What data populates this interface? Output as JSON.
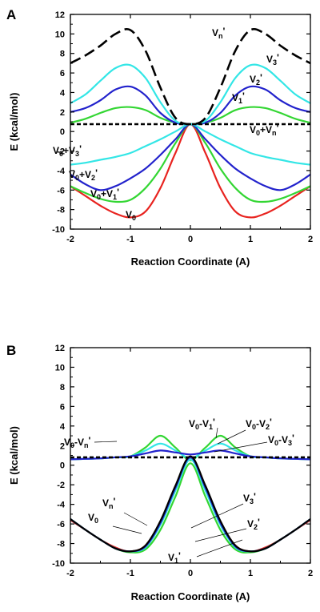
{
  "figure": {
    "panels": [
      {
        "label": "A",
        "xlabel": "Reaction Coordinate (A)",
        "ylabel": "E (kcal/mol)",
        "xlim": [
          -2,
          2
        ],
        "ylim": [
          -10,
          12
        ],
        "xticks": [
          "-2",
          "-1",
          "0",
          "1",
          "2"
        ],
        "yticks": [
          "-10",
          "-8",
          "-6",
          "-4",
          "-2",
          "0",
          "2",
          "4",
          "6",
          "8",
          "10",
          "12"
        ]
      },
      {
        "label": "B",
        "xlabel": "Reaction Coordinate (A)",
        "ylabel": "E (kcal/mol)",
        "xlim": [
          -2,
          2
        ],
        "ylim": [
          -10,
          12
        ],
        "xticks": [
          "-2",
          "-1",
          "0",
          "1",
          "2"
        ],
        "yticks": [
          "-10",
          "-8",
          "-6",
          "-4",
          "-2",
          "0",
          "2",
          "4",
          "6",
          "8",
          "10",
          "12"
        ]
      }
    ]
  },
  "chart_data": [
    {
      "type": "line",
      "panel": "A",
      "xlabel": "Reaction Coordinate (A)",
      "ylabel": "E (kcal/mol)",
      "xlim": [
        -2,
        2
      ],
      "ylim": [
        -10,
        12
      ],
      "x": [
        -2.0,
        -1.75,
        -1.5,
        -1.25,
        -1.0,
        -0.75,
        -0.5,
        -0.25,
        0.0,
        0.25,
        0.5,
        0.75,
        1.0,
        1.25,
        1.5,
        1.75,
        2.0
      ],
      "series": [
        {
          "name": "V0",
          "color": "#e8231f",
          "style": "solid",
          "values": [
            -5.6,
            -6.6,
            -7.6,
            -8.4,
            -8.8,
            -8.2,
            -5.8,
            -2.2,
            0.75,
            -2.2,
            -5.8,
            -8.2,
            -8.8,
            -8.4,
            -7.6,
            -6.6,
            -5.6
          ]
        },
        {
          "name": "V0+V1'",
          "color": "#33d633",
          "style": "solid",
          "values": [
            -5.6,
            -6.3,
            -6.9,
            -7.2,
            -7.0,
            -5.8,
            -3.8,
            -1.2,
            0.75,
            -1.2,
            -3.8,
            -5.8,
            -7.0,
            -7.2,
            -6.9,
            -6.3,
            -5.6
          ]
        },
        {
          "name": "V0+V2'",
          "color": "#2222cc",
          "style": "solid",
          "values": [
            -4.4,
            -5.4,
            -6.0,
            -5.6,
            -4.8,
            -3.8,
            -2.4,
            -0.8,
            0.75,
            -0.8,
            -2.4,
            -3.8,
            -4.8,
            -5.6,
            -6.0,
            -5.4,
            -4.4
          ]
        },
        {
          "name": "V0+V3'",
          "color": "#33e6e6",
          "style": "solid",
          "values": [
            -3.4,
            -3.2,
            -2.9,
            -2.6,
            -2.2,
            -1.5,
            -0.8,
            0.0,
            0.75,
            0.0,
            -0.8,
            -1.5,
            -2.2,
            -2.6,
            -2.9,
            -3.2,
            -3.4
          ]
        },
        {
          "name": "V1'",
          "color": "#33d633",
          "style": "solid",
          "values": [
            0.9,
            1.3,
            1.9,
            2.4,
            2.5,
            2.2,
            1.4,
            0.9,
            0.75,
            0.9,
            1.4,
            2.2,
            2.5,
            2.4,
            1.9,
            1.3,
            0.9
          ]
        },
        {
          "name": "V2'",
          "color": "#2222cc",
          "style": "solid",
          "values": [
            2.0,
            2.4,
            3.2,
            4.3,
            4.6,
            3.7,
            1.9,
            0.9,
            0.75,
            0.9,
            1.9,
            3.7,
            4.6,
            4.3,
            3.2,
            2.4,
            2.0
          ]
        },
        {
          "name": "V3'",
          "color": "#33e6e6",
          "style": "solid",
          "values": [
            2.9,
            3.8,
            5.2,
            6.5,
            6.8,
            5.5,
            3.0,
            1.1,
            0.75,
            1.1,
            3.0,
            5.5,
            6.8,
            6.5,
            5.2,
            3.8,
            2.9
          ]
        },
        {
          "name": "Vn'",
          "color": "#000000",
          "style": "dashed",
          "values": [
            7.0,
            7.8,
            8.8,
            10.0,
            10.4,
            8.3,
            4.5,
            1.4,
            0.75,
            1.4,
            4.5,
            8.3,
            10.4,
            10.0,
            8.8,
            7.8,
            7.0
          ]
        },
        {
          "name": "V0+Vn'",
          "color": "#000000",
          "style": "dashed",
          "values": [
            0.75,
            0.75,
            0.75,
            0.75,
            0.75,
            0.75,
            0.75,
            0.75,
            0.75,
            0.75,
            0.75,
            0.75,
            0.75,
            0.75,
            0.75,
            0.75,
            0.75
          ]
        }
      ],
      "annotations": [
        {
          "text": "Vn'",
          "base": "V",
          "sub": "n",
          "tail": "'"
        },
        {
          "text": "V3'",
          "base": "V",
          "sub": "3",
          "tail": "'"
        },
        {
          "text": "V2'",
          "base": "V",
          "sub": "2",
          "tail": "'"
        },
        {
          "text": "V1'",
          "base": "V",
          "sub": "1",
          "tail": "'"
        },
        {
          "text": "V0+Vn'",
          "base": "V",
          "sub": "0",
          "mid": "+V",
          "sub2": "n",
          "tail": "'"
        },
        {
          "text": "V0+V3'",
          "base": "V",
          "sub": "0",
          "mid": "+V",
          "sub2": "3",
          "tail": "'"
        },
        {
          "text": "V0+V2'",
          "base": "V",
          "sub": "0",
          "mid": "+V",
          "sub2": "2",
          "tail": "'"
        },
        {
          "text": "V0+V1'",
          "base": "V",
          "sub": "0",
          "mid": "+V",
          "sub2": "1",
          "tail": "'"
        },
        {
          "text": "V0",
          "base": "V",
          "sub": "0",
          "tail": ""
        }
      ]
    },
    {
      "type": "line",
      "panel": "B",
      "xlabel": "Reaction Coordinate (A)",
      "ylabel": "E (kcal/mol)",
      "xlim": [
        -2,
        2
      ],
      "ylim": [
        -10,
        12
      ],
      "x": [
        -2.0,
        -1.75,
        -1.5,
        -1.25,
        -1.0,
        -0.75,
        -0.5,
        -0.25,
        0.0,
        0.25,
        0.5,
        0.75,
        1.0,
        1.25,
        1.5,
        1.75,
        2.0
      ],
      "series": [
        {
          "name": "V0-V1'",
          "color": "#33d633",
          "style": "solid",
          "values": [
            0.6,
            0.65,
            0.7,
            0.8,
            0.9,
            1.8,
            3.0,
            1.8,
            0.5,
            1.8,
            3.0,
            1.8,
            0.9,
            0.8,
            0.7,
            0.65,
            0.6
          ]
        },
        {
          "name": "V0-V2'",
          "color": "#33e6e6",
          "style": "solid",
          "values": [
            0.6,
            0.65,
            0.7,
            0.8,
            0.9,
            1.5,
            2.2,
            1.5,
            0.7,
            1.5,
            2.2,
            1.5,
            0.9,
            0.8,
            0.7,
            0.65,
            0.6
          ]
        },
        {
          "name": "V0-V3'",
          "color": "#2222cc",
          "style": "solid",
          "values": [
            0.6,
            0.65,
            0.7,
            0.8,
            0.9,
            1.2,
            1.5,
            1.3,
            1.1,
            1.3,
            1.5,
            1.2,
            0.9,
            0.8,
            0.7,
            0.65,
            0.6
          ]
        },
        {
          "name": "V0-Vn'",
          "color": "#000000",
          "style": "dashed",
          "values": [
            0.8,
            0.8,
            0.8,
            0.8,
            0.8,
            0.8,
            0.8,
            0.8,
            0.8,
            0.8,
            0.8,
            0.8,
            0.8,
            0.8,
            0.8,
            0.8,
            0.8
          ]
        },
        {
          "name": "V0",
          "color": "#e8231f",
          "style": "solid",
          "values": [
            -5.6,
            -6.6,
            -7.6,
            -8.4,
            -8.8,
            -8.2,
            -5.8,
            -2.2,
            0.75,
            -2.2,
            -5.8,
            -8.2,
            -8.8,
            -8.4,
            -7.6,
            -6.6,
            -5.6
          ]
        },
        {
          "name": "V1'",
          "color": "#33d633",
          "style": "solid",
          "values": [
            -5.5,
            -6.6,
            -7.6,
            -8.5,
            -8.9,
            -8.6,
            -6.6,
            -3.2,
            0.2,
            -3.2,
            -6.6,
            -8.6,
            -8.9,
            -8.5,
            -7.6,
            -6.6,
            -5.5
          ]
        },
        {
          "name": "V2'",
          "color": "#33e6e6",
          "style": "solid",
          "values": [
            -5.5,
            -6.6,
            -7.6,
            -8.5,
            -8.8,
            -8.4,
            -6.1,
            -2.6,
            0.6,
            -2.6,
            -6.1,
            -8.4,
            -8.8,
            -8.5,
            -7.6,
            -6.6,
            -5.5
          ]
        },
        {
          "name": "V3'",
          "color": "#2222cc",
          "style": "solid",
          "values": [
            -5.5,
            -6.6,
            -7.6,
            -8.5,
            -8.8,
            -8.3,
            -5.9,
            -2.3,
            0.8,
            -2.3,
            -5.9,
            -8.3,
            -8.8,
            -8.5,
            -7.6,
            -6.6,
            -5.5
          ]
        },
        {
          "name": "Vn'",
          "color": "#000000",
          "style": "solid",
          "values": [
            -5.5,
            -6.6,
            -7.6,
            -8.5,
            -8.8,
            -8.2,
            -5.7,
            -2.1,
            0.9,
            -2.1,
            -5.7,
            -8.2,
            -8.8,
            -8.5,
            -7.6,
            -6.6,
            -5.5
          ]
        }
      ],
      "annotations": [
        {
          "text": "V0-Vn'",
          "base": "V",
          "sub": "0",
          "mid": "-V",
          "sub2": "n",
          "tail": "'"
        },
        {
          "text": "V0-V1'",
          "base": "V",
          "sub": "0",
          "mid": "-V",
          "sub2": "1",
          "tail": "'"
        },
        {
          "text": "V0-V2'",
          "base": "V",
          "sub": "0",
          "mid": "-V",
          "sub2": "2",
          "tail": "'"
        },
        {
          "text": "V0-V3'",
          "base": "V",
          "sub": "0",
          "mid": "-V",
          "sub2": "3",
          "tail": "'"
        },
        {
          "text": "Vn'",
          "base": "V",
          "sub": "n",
          "tail": "'"
        },
        {
          "text": "V3'",
          "base": "V",
          "sub": "3",
          "tail": "'"
        },
        {
          "text": "V2'",
          "base": "V",
          "sub": "2",
          "tail": "'"
        },
        {
          "text": "V0",
          "base": "V",
          "sub": "0",
          "tail": ""
        },
        {
          "text": "V1'",
          "base": "V",
          "sub": "1",
          "tail": "'"
        }
      ]
    }
  ]
}
